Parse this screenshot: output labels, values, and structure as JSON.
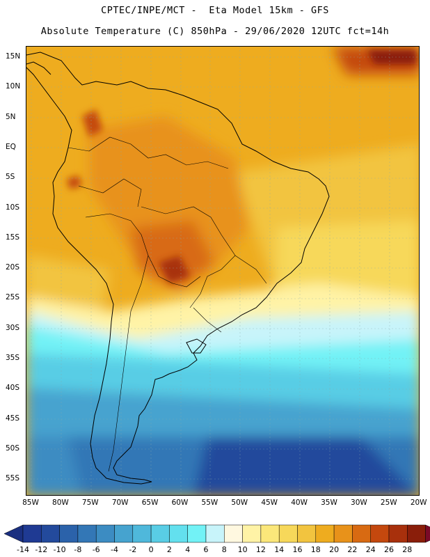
{
  "header": {
    "line1": "CPTEC/INPE/MCT -  Eta Model 15km - GFS",
    "line2": "Absolute Temperature (C) 850hPa - 29/06/2020 12UTC fct=14h"
  },
  "map": {
    "lat_labels": [
      "15N",
      "10N",
      "5N",
      "EQ",
      "5S",
      "10S",
      "15S",
      "20S",
      "25S",
      "30S",
      "35S",
      "40S",
      "45S",
      "50S",
      "55S"
    ],
    "lon_labels": [
      "85W",
      "80W",
      "75W",
      "70W",
      "65W",
      "60W",
      "55W",
      "50W",
      "45W",
      "40W",
      "35W",
      "30W",
      "25W",
      "20W"
    ],
    "region": "South America",
    "variable": "Absolute Temperature (C) 850hPa"
  },
  "colorbar": {
    "ticks": [
      "-14",
      "-12",
      "-10",
      "-8",
      "-6",
      "-4",
      "-2",
      "0",
      "2",
      "4",
      "6",
      "8",
      "10",
      "12",
      "14",
      "16",
      "18",
      "20",
      "22",
      "24",
      "26",
      "28"
    ],
    "colors": [
      "#1f3a93",
      "#234a9c",
      "#2b62aa",
      "#3377b6",
      "#3c8cc2",
      "#46a3cf",
      "#4fb8db",
      "#59cde5",
      "#63e0ee",
      "#72f2f6",
      "#c8f4fa",
      "#fff8e0",
      "#fff3a6",
      "#fbe77a",
      "#f7d85a",
      "#f2c43f",
      "#eeac1f",
      "#e8921a",
      "#d86a12",
      "#c4480e",
      "#a8300c",
      "#8a1e0a"
    ],
    "low_arrow_color": "#1a2f80",
    "high_arrow_color": "#7a0a28"
  }
}
